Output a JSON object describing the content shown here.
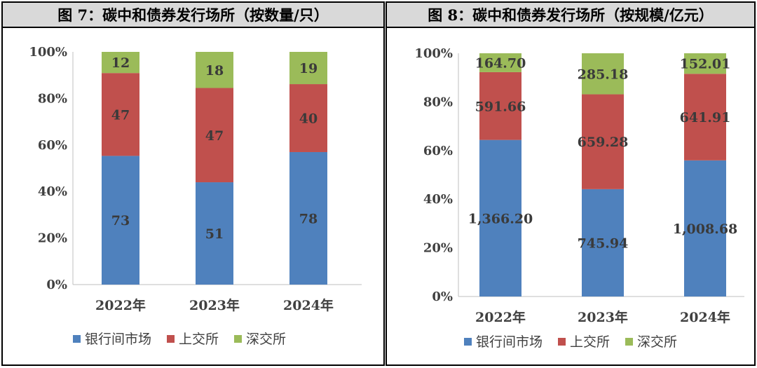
{
  "colors": {
    "interbank": "#4f81bd",
    "shanghai": "#c0504d",
    "shenzhen": "#9bbb59"
  },
  "chart_data": [
    {
      "type": "bar",
      "stacked": "percent",
      "title": "图 7：碳中和债券发行场所（按数量/只）",
      "categories": [
        "2022年",
        "2023年",
        "2024年"
      ],
      "series": [
        {
          "name": "银行间市场",
          "values": [
            73,
            51,
            78
          ],
          "labels": [
            "73",
            "51",
            "78"
          ]
        },
        {
          "name": "上交所",
          "values": [
            47,
            47,
            40
          ],
          "labels": [
            "47",
            "47",
            "40"
          ]
        },
        {
          "name": "深交所",
          "values": [
            12,
            18,
            19
          ],
          "labels": [
            "12",
            "18",
            "19"
          ]
        }
      ],
      "yticks": [
        "0%",
        "20%",
        "40%",
        "60%",
        "80%",
        "100%"
      ],
      "ylim": [
        0,
        100
      ],
      "grid": false,
      "legend": "bottom"
    },
    {
      "type": "bar",
      "stacked": "percent",
      "title": "图 8：碳中和债券发行场所（按规模/亿元）",
      "categories": [
        "2022年",
        "2023年",
        "2024年"
      ],
      "series": [
        {
          "name": "银行间市场",
          "values": [
            1366.2,
            745.94,
            1008.68
          ],
          "labels": [
            "1,366.20",
            "745.94",
            "1,008.68"
          ]
        },
        {
          "name": "上交所",
          "values": [
            591.66,
            659.28,
            641.91
          ],
          "labels": [
            "591.66",
            "659.28",
            "641.91"
          ]
        },
        {
          "name": "深交所",
          "values": [
            164.7,
            285.18,
            152.01
          ],
          "labels": [
            "164.70",
            "285.18",
            "152.01"
          ]
        }
      ],
      "yticks": [
        "0%",
        "20%",
        "40%",
        "60%",
        "80%",
        "100%"
      ],
      "ylim": [
        0,
        100
      ],
      "grid": false,
      "legend": "bottom"
    }
  ]
}
